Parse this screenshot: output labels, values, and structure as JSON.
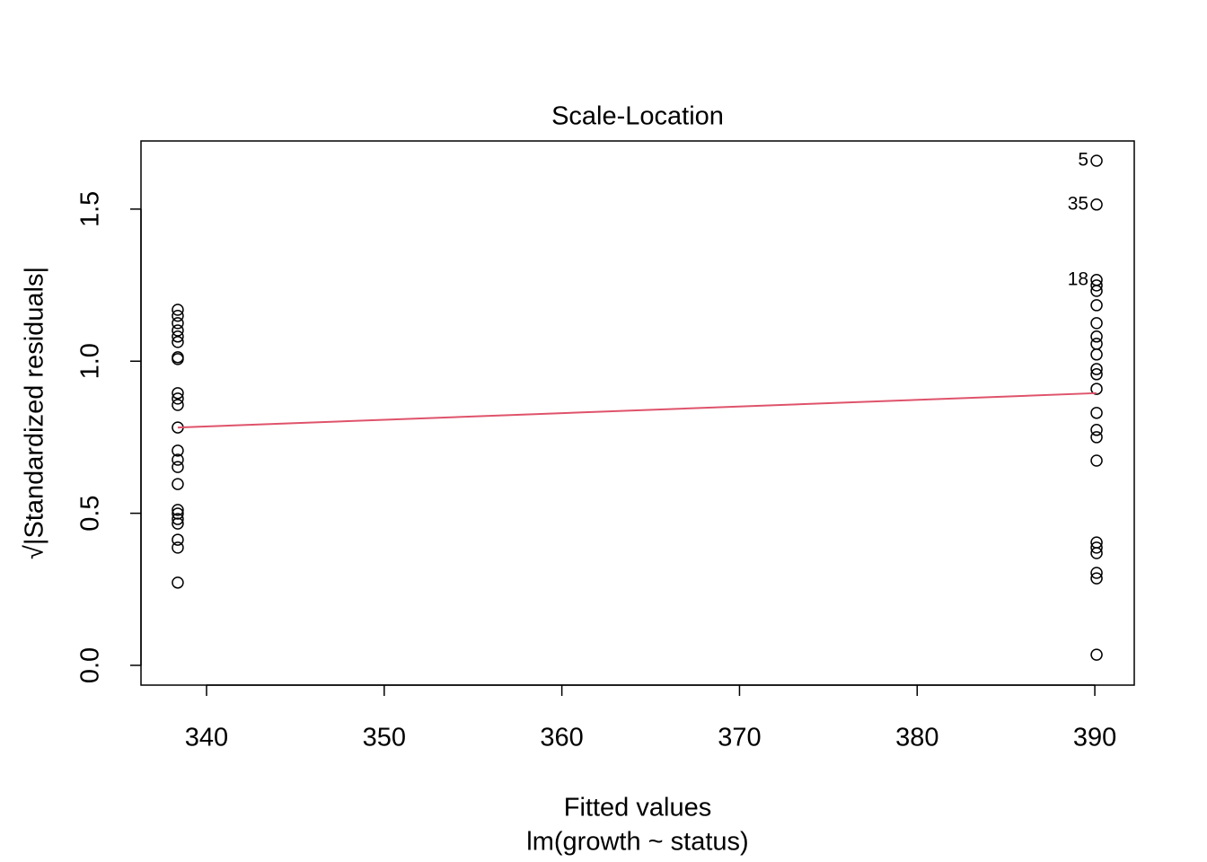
{
  "chart_data": {
    "type": "scatter",
    "title": "Scale-Location",
    "x_label": "Fitted values",
    "subtitle": "lm(growth ~ status)",
    "y_label": "√|Standardized residuals|",
    "x": [
      338.38,
      338.38,
      338.38,
      338.38,
      338.38,
      338.38,
      338.38,
      338.38,
      338.38,
      338.38,
      338.38,
      338.38,
      338.38,
      338.38,
      338.38,
      338.38,
      338.38,
      338.38,
      338.38,
      338.38,
      338.38,
      338.38,
      338.38,
      390.1,
      390.1,
      390.1,
      390.1,
      390.1,
      390.1,
      390.1,
      390.1,
      390.1,
      390.1,
      390.1,
      390.1,
      390.1,
      390.1,
      390.1,
      390.1,
      390.1,
      390.1,
      390.1,
      390.1,
      390.1,
      390.1,
      390.1
    ],
    "y": [
      1.169,
      1.149,
      1.125,
      1.101,
      1.081,
      1.063,
      1.013,
      1.007,
      0.895,
      0.877,
      0.856,
      0.782,
      0.706,
      0.676,
      0.652,
      0.596,
      0.511,
      0.499,
      0.481,
      0.466,
      0.413,
      0.387,
      0.272,
      1.659,
      1.515,
      1.267,
      1.249,
      1.231,
      1.184,
      1.125,
      1.081,
      1.057,
      1.022,
      0.974,
      0.957,
      0.909,
      0.83,
      0.774,
      0.75,
      0.673,
      0.404,
      0.387,
      0.369,
      0.304,
      0.286,
      0.035
    ],
    "point_labels": [
      null,
      null,
      null,
      null,
      null,
      null,
      null,
      null,
      null,
      null,
      null,
      null,
      null,
      null,
      null,
      null,
      null,
      null,
      null,
      null,
      null,
      null,
      null,
      "5",
      "35",
      "18",
      null,
      null,
      null,
      null,
      null,
      null,
      null,
      null,
      null,
      null,
      null,
      null,
      null,
      null,
      null,
      null,
      null,
      null,
      null,
      null
    ],
    "smooth": {
      "color": "#DF536B",
      "x": [
        338.38,
        390.1
      ],
      "y": [
        0.782,
        0.895
      ]
    },
    "color": "#000000",
    "xlim": [
      336.31,
      392.22
    ],
    "ylim": [
      -0.065,
      1.724
    ],
    "xticks": [
      340,
      350,
      360,
      370,
      380,
      390
    ],
    "yticks": [
      {
        "value": 0,
        "label": "0.0"
      },
      0.5,
      {
        "value": 1,
        "label": "1.0"
      },
      1.5
    ],
    "grid": false
  }
}
